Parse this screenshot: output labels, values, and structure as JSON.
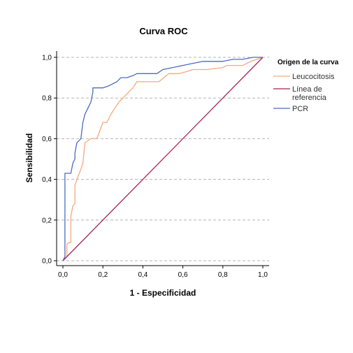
{
  "chart_data": {
    "type": "line",
    "title": "Curva ROC",
    "xlabel": "1 - Especificidad",
    "ylabel": "Sensibilidad",
    "xlim": [
      0,
      1
    ],
    "ylim": [
      0,
      1
    ],
    "x_ticks": [
      "0,0",
      "0,2",
      "0,4",
      "0,6",
      "0,8",
      "1,0"
    ],
    "y_ticks": [
      "0,0",
      "0,2",
      "0,4",
      "0,6",
      "0,8",
      "1,0"
    ],
    "grid": "horizontal dashed",
    "legend": {
      "title": "Origen de la curva",
      "position": "right",
      "entries": [
        "Leucocitosis",
        "Línea de referencia",
        "PCR"
      ],
      "entry_lines": [
        [
          "Leucocitosis"
        ],
        [
          "Línea de",
          "referencia"
        ],
        [
          "PCR"
        ]
      ]
    },
    "series": [
      {
        "name": "Leucocitosis",
        "color": "#f5a97c",
        "x": [
          0.0,
          0.02,
          0.02,
          0.03,
          0.04,
          0.04,
          0.05,
          0.06,
          0.06,
          0.07,
          0.09,
          0.1,
          0.11,
          0.14,
          0.17,
          0.2,
          0.22,
          0.24,
          0.26,
          0.28,
          0.32,
          0.35,
          0.37,
          0.48,
          0.53,
          0.58,
          0.62,
          0.65,
          0.72,
          0.8,
          0.82,
          0.9,
          0.94,
          0.97,
          1.0
        ],
        "y": [
          0.0,
          0.02,
          0.08,
          0.09,
          0.09,
          0.22,
          0.27,
          0.28,
          0.37,
          0.4,
          0.45,
          0.48,
          0.58,
          0.6,
          0.6,
          0.68,
          0.68,
          0.72,
          0.75,
          0.78,
          0.82,
          0.85,
          0.88,
          0.88,
          0.92,
          0.92,
          0.93,
          0.94,
          0.94,
          0.95,
          0.96,
          0.96,
          0.98,
          0.99,
          1.0
        ]
      },
      {
        "name": "Línea de referencia",
        "color": "#a8234e",
        "x": [
          0.0,
          1.0
        ],
        "y": [
          0.0,
          1.0
        ]
      },
      {
        "name": "PCR",
        "color": "#4a6bbd",
        "x": [
          0.0,
          0.01,
          0.01,
          0.02,
          0.04,
          0.05,
          0.06,
          0.06,
          0.07,
          0.09,
          0.1,
          0.11,
          0.12,
          0.13,
          0.14,
          0.15,
          0.15,
          0.17,
          0.2,
          0.23,
          0.25,
          0.27,
          0.29,
          0.32,
          0.35,
          0.37,
          0.47,
          0.5,
          0.55,
          0.6,
          0.7,
          0.8,
          0.85,
          0.9,
          0.95,
          1.0
        ],
        "y": [
          0.0,
          0.02,
          0.43,
          0.43,
          0.43,
          0.48,
          0.5,
          0.53,
          0.58,
          0.6,
          0.68,
          0.72,
          0.74,
          0.76,
          0.78,
          0.83,
          0.85,
          0.85,
          0.85,
          0.86,
          0.87,
          0.88,
          0.9,
          0.9,
          0.91,
          0.92,
          0.92,
          0.94,
          0.95,
          0.96,
          0.98,
          0.98,
          0.99,
          0.99,
          1.0,
          1.0
        ]
      }
    ]
  }
}
